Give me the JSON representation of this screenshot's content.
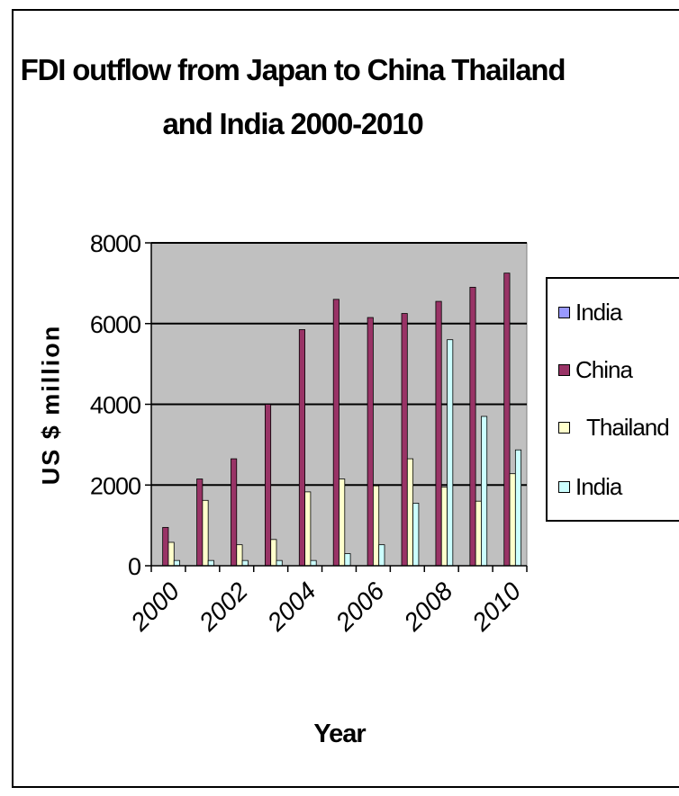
{
  "chart_data": {
    "type": "bar",
    "title_line1": "FDI outflow from Japan to China Thailand",
    "title_line2": "and India 2000-2010",
    "xlabel": "Year",
    "ylabel": "US $ million",
    "ylim": [
      0,
      8000
    ],
    "yticks": [
      "0",
      "2000",
      "4000",
      "6000",
      "8000"
    ],
    "categories": [
      "2000",
      "2001",
      "2002",
      "2003",
      "2004",
      "2005",
      "2006",
      "2007",
      "2008",
      "2009",
      "2010"
    ],
    "xtick_labels": [
      "2000",
      "2002",
      "2004",
      "2006",
      "2008",
      "2010"
    ],
    "grid": true,
    "legend_placement": "right",
    "series": [
      {
        "name": "India",
        "legend_label": "India",
        "color": "#9999ff",
        "values": [
          0,
          0,
          0,
          0,
          0,
          0,
          0,
          0,
          0,
          0,
          0
        ]
      },
      {
        "name": "China",
        "legend_label": "China",
        "color": "#993366",
        "values": [
          950,
          2150,
          2650,
          4000,
          5850,
          6600,
          6150,
          6250,
          6550,
          6900,
          7250
        ]
      },
      {
        "name": "Thailand",
        "legend_label": "  Thailand",
        "color": "#ffffcc",
        "values": [
          580,
          1620,
          520,
          650,
          1830,
          2150,
          1980,
          2650,
          1950,
          1600,
          2280
        ]
      },
      {
        "name": "India",
        "legend_label": "India",
        "color": "#ccffff",
        "values": [
          130,
          130,
          130,
          130,
          130,
          300,
          520,
          1550,
          5600,
          3700,
          2870
        ]
      }
    ],
    "plot_background": "#c0c0c0"
  }
}
